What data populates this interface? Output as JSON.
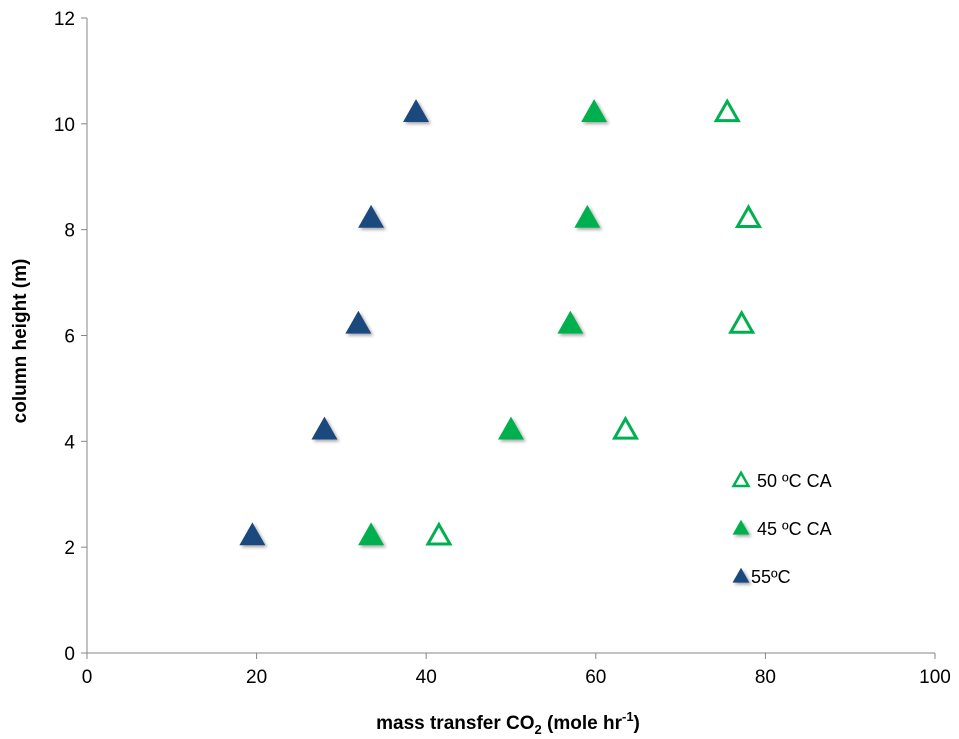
{
  "chart_data": {
    "type": "scatter",
    "xlabel": "mass transfer CO2 (mole hr-1)",
    "xlabel_parts": {
      "a": "mass transfer CO",
      "sub": "2",
      "b": " (mole hr",
      "sup": "-1",
      "c": ")"
    },
    "ylabel": "column height (m)",
    "xlim": [
      0,
      100
    ],
    "ylim": [
      0,
      12
    ],
    "x_ticks": [
      "0",
      "20",
      "40",
      "60",
      "80",
      "100"
    ],
    "y_ticks": [
      "0",
      "2",
      "4",
      "6",
      "8",
      "10",
      "12"
    ],
    "grid": false,
    "legend_position": "right",
    "series": [
      {
        "name": "50 ºC CA",
        "marker": "hollow-triangle",
        "color": "#00B050",
        "points": [
          [
            41.5,
            2.2
          ],
          [
            63.5,
            4.2
          ],
          [
            77.2,
            6.2
          ],
          [
            78,
            8.2
          ],
          [
            75.5,
            10.2
          ]
        ]
      },
      {
        "name": "45 ºC CA",
        "marker": "filled-triangle",
        "color": "#00B050",
        "points": [
          [
            33.5,
            2.2
          ],
          [
            50,
            4.2
          ],
          [
            57,
            6.2
          ],
          [
            59,
            8.2
          ],
          [
            59.8,
            10.2
          ]
        ]
      },
      {
        "name": "55ºC",
        "marker": "filled-triangle",
        "color": "#1F497D",
        "points": [
          [
            19.5,
            2.2
          ],
          [
            28,
            4.2
          ],
          [
            32,
            6.2
          ],
          [
            33.5,
            8.2
          ],
          [
            38.8,
            10.2
          ]
        ]
      }
    ]
  }
}
